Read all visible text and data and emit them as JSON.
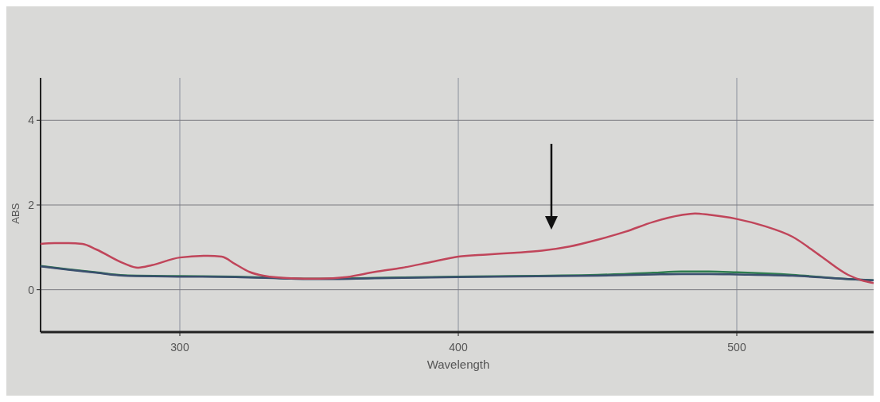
{
  "chart_data": {
    "type": "line",
    "xlabel": "Wavelength",
    "ylabel": "ABS",
    "xlim": [
      250,
      550
    ],
    "xticks": [
      300,
      400,
      500
    ],
    "ylim": [
      -1,
      5
    ],
    "yticks": [
      0,
      2,
      4
    ],
    "grid": true,
    "line_style": "solid",
    "marker": "none",
    "series": [
      {
        "color": "#2e7d4f",
        "x": [
          250,
          260,
          270,
          280,
          300,
          320,
          340,
          350,
          370,
          400,
          450,
          470,
          480,
          490,
          500,
          520,
          540,
          550
        ],
        "values": [
          0.56,
          0.48,
          0.41,
          0.34,
          0.32,
          0.31,
          0.27,
          0.26,
          0.28,
          0.31,
          0.35,
          0.4,
          0.43,
          0.43,
          0.41,
          0.35,
          0.25,
          0.22
        ]
      },
      {
        "color": "#3a4f6e",
        "x": [
          250,
          260,
          270,
          280,
          300,
          320,
          340,
          350,
          370,
          400,
          450,
          470,
          480,
          490,
          500,
          520,
          540,
          550
        ],
        "values": [
          0.55,
          0.47,
          0.4,
          0.33,
          0.31,
          0.3,
          0.26,
          0.25,
          0.27,
          0.3,
          0.33,
          0.36,
          0.37,
          0.37,
          0.36,
          0.33,
          0.25,
          0.22
        ]
      },
      {
        "color": "#c0455a",
        "x": [
          250,
          255,
          260,
          265,
          270,
          280,
          285,
          290,
          300,
          310,
          315,
          320,
          325,
          330,
          340,
          350,
          360,
          370,
          380,
          390,
          400,
          410,
          420,
          430,
          440,
          450,
          460,
          470,
          480,
          485,
          490,
          500,
          510,
          520,
          530,
          540,
          545,
          550
        ],
        "values": [
          1.08,
          1.1,
          1.1,
          1.08,
          0.95,
          0.62,
          0.52,
          0.58,
          0.76,
          0.8,
          0.78,
          0.6,
          0.42,
          0.33,
          0.27,
          0.26,
          0.3,
          0.42,
          0.52,
          0.65,
          0.78,
          0.83,
          0.87,
          0.92,
          1.02,
          1.18,
          1.37,
          1.6,
          1.76,
          1.8,
          1.77,
          1.67,
          1.5,
          1.25,
          0.8,
          0.35,
          0.22,
          0.15
        ]
      }
    ]
  }
}
